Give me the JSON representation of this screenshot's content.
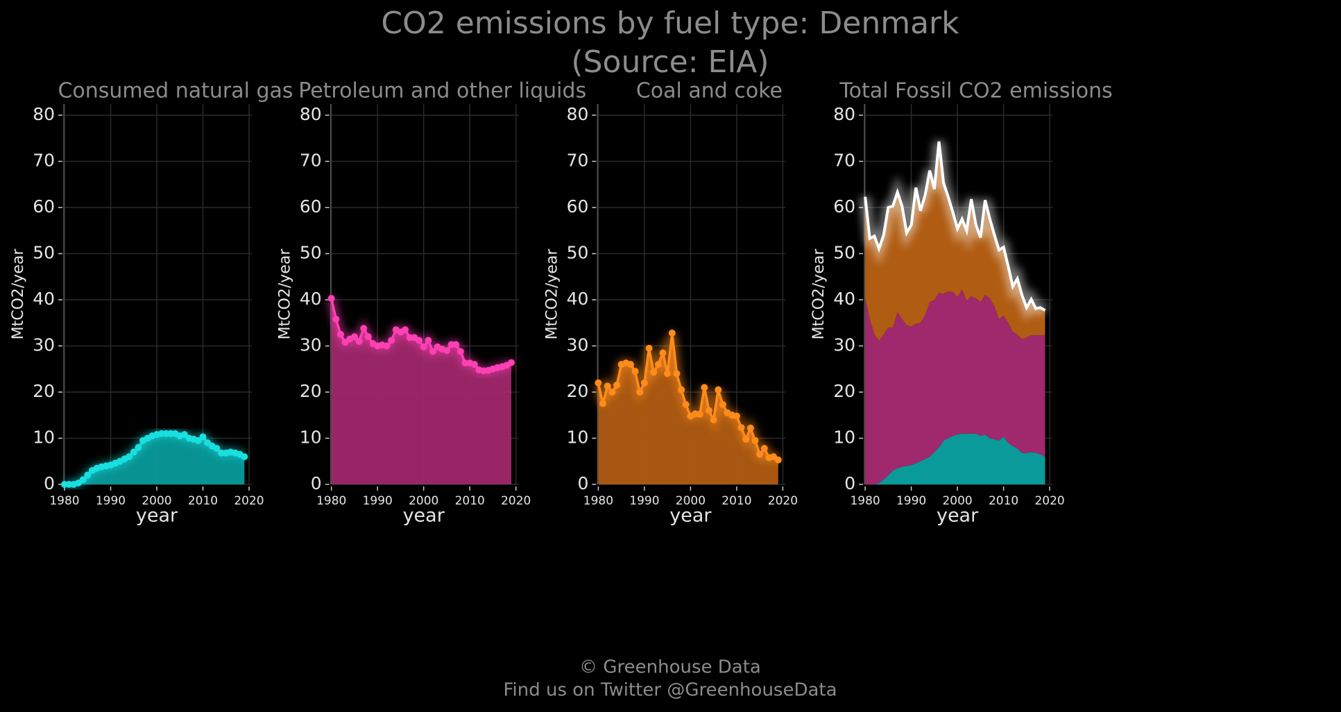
{
  "title": "CO2 emissions by fuel type: Denmark",
  "subtitle": "(Source: EIA)",
  "footer": [
    "© Greenhouse Data",
    "Find us on Twitter @GreenhouseData"
  ],
  "chart_data": [
    {
      "type": "area",
      "title": "Consumed natural gas",
      "xlabel": "year",
      "ylabel": "MtCO2/year",
      "x": [
        1980,
        1981,
        1982,
        1983,
        1984,
        1985,
        1986,
        1987,
        1988,
        1989,
        1990,
        1991,
        1992,
        1993,
        1994,
        1995,
        1996,
        1997,
        1998,
        1999,
        2000,
        2001,
        2002,
        2003,
        2004,
        2005,
        2006,
        2007,
        2008,
        2009,
        2010,
        2011,
        2012,
        2013,
        2014,
        2015,
        2016,
        2017,
        2018,
        2019
      ],
      "values": [
        0,
        0,
        0,
        0.3,
        1,
        2,
        3,
        3.5,
        3.8,
        4,
        4.2,
        4.6,
        5,
        5.5,
        6,
        7,
        8,
        9.5,
        10,
        10.5,
        10.8,
        11,
        11,
        11,
        11,
        10.5,
        10.8,
        10,
        9.8,
        9.5,
        10.3,
        9,
        8.3,
        7.8,
        6.8,
        6.8,
        7,
        6.8,
        6.5,
        6
      ],
      "color": "#18e0e0",
      "fill": "#0a9a9a",
      "xlim": [
        1980,
        2020
      ],
      "ylim": [
        0,
        80
      ],
      "xticks": [
        1980,
        1990,
        2000,
        2010,
        2020
      ],
      "yticks": [
        0,
        10,
        20,
        30,
        40,
        50,
        60,
        70,
        80
      ],
      "grid": true
    },
    {
      "type": "area",
      "title": "Petroleum and other liquids",
      "xlabel": "year",
      "ylabel": "MtCO2/year",
      "x": [
        1980,
        1981,
        1982,
        1983,
        1984,
        1985,
        1986,
        1987,
        1988,
        1989,
        1990,
        1991,
        1992,
        1993,
        1994,
        1995,
        1996,
        1997,
        1998,
        1999,
        2000,
        2001,
        2002,
        2003,
        2004,
        2005,
        2006,
        2007,
        2008,
        2009,
        2010,
        2011,
        2012,
        2013,
        2014,
        2015,
        2016,
        2017,
        2018,
        2019
      ],
      "values": [
        40.3,
        35.8,
        32.5,
        30.8,
        31.5,
        32,
        31,
        33.8,
        32,
        30.5,
        30,
        30.2,
        30,
        31.2,
        33.5,
        33,
        33.5,
        31.8,
        31.8,
        31.2,
        29.8,
        31.2,
        28.8,
        29.8,
        29.3,
        29,
        30.3,
        30.3,
        28.8,
        26.3,
        26.3,
        26,
        24.8,
        24.6,
        24.7,
        25,
        25.3,
        25.5,
        25.8,
        26.4
      ],
      "color": "#ff3fb4",
      "fill": "#a0286c",
      "xlim": [
        1980,
        2020
      ],
      "ylim": [
        0,
        80
      ],
      "xticks": [
        1980,
        1990,
        2000,
        2010,
        2020
      ],
      "yticks": [
        0,
        10,
        20,
        30,
        40,
        50,
        60,
        70,
        80
      ],
      "grid": true
    },
    {
      "type": "area",
      "title": "Coal and coke",
      "xlabel": "year",
      "ylabel": "MtCO2/year",
      "x": [
        1980,
        1981,
        1982,
        1983,
        1984,
        1985,
        1986,
        1987,
        1988,
        1989,
        1990,
        1991,
        1992,
        1993,
        1994,
        1995,
        1996,
        1997,
        1998,
        1999,
        2000,
        2001,
        2002,
        2003,
        2004,
        2005,
        2006,
        2007,
        2008,
        2009,
        2010,
        2011,
        2012,
        2013,
        2014,
        2015,
        2016,
        2017,
        2018,
        2019
      ],
      "values": [
        22,
        17.5,
        21.3,
        20,
        21.5,
        26,
        26.3,
        26,
        24.5,
        20,
        22,
        29.5,
        24.3,
        26,
        28.5,
        24,
        32.8,
        24,
        20.5,
        17.3,
        14.8,
        15.3,
        15.2,
        21,
        16,
        14,
        20.5,
        17.3,
        15.5,
        15,
        14.8,
        12.3,
        9.8,
        12.2,
        9.5,
        6.5,
        7.8,
        5.8,
        6,
        5.3
      ],
      "color": "#ff8c1a",
      "fill": "#b05c12",
      "xlim": [
        1980,
        2020
      ],
      "ylim": [
        0,
        80
      ],
      "xticks": [
        1980,
        1990,
        2000,
        2010,
        2020
      ],
      "yticks": [
        0,
        10,
        20,
        30,
        40,
        50,
        60,
        70,
        80
      ],
      "grid": true
    },
    {
      "type": "stacked_area",
      "title": "Total Fossil CO2 emissions",
      "xlabel": "year",
      "ylabel": "MtCO2/year",
      "color": "#ffffff",
      "xlim": [
        1980,
        2020
      ],
      "ylim": [
        0,
        80
      ],
      "xticks": [
        1980,
        1990,
        2000,
        2010,
        2020
      ],
      "yticks": [
        0,
        10,
        20,
        30,
        40,
        50,
        60,
        70,
        80
      ],
      "grid": true
    }
  ]
}
